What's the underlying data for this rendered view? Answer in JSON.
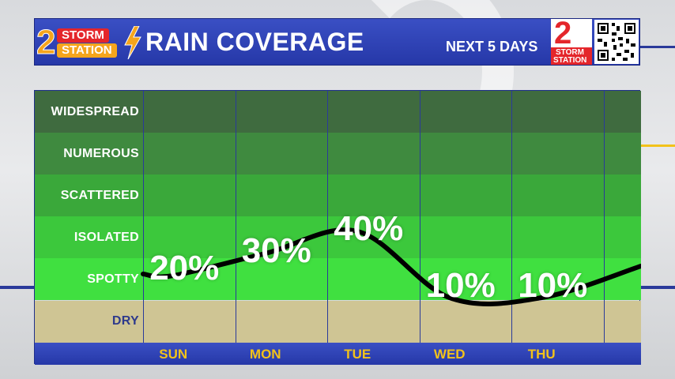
{
  "header": {
    "logo_number": "2",
    "logo_line1": "STORM",
    "logo_line2": "STATION",
    "title": "RAIN COVERAGE",
    "subtitle": "NEXT 5 DAYS",
    "badge_number": "2",
    "badge_line1": "STORM",
    "badge_line2": "STATION"
  },
  "colors": {
    "header_blue": "#2a3fb8",
    "day_label": "#f2c21a",
    "widespread": "#3f6b3f",
    "numerous": "#3f8a3f",
    "scattered": "#3aa83a",
    "isolated": "#3cc83c",
    "spotty": "#40e040",
    "dry": "#cfc594",
    "curve": "#000000"
  },
  "chart_data": {
    "type": "line",
    "categories": [
      "SUN",
      "MON",
      "TUE",
      "WED",
      "THU"
    ],
    "coverage_levels": [
      "WIDESPREAD",
      "NUMEROUS",
      "SCATTERED",
      "ISOLATED",
      "SPOTTY",
      "DRY"
    ],
    "series": [
      {
        "values": [
          20,
          30,
          40,
          10,
          10
        ],
        "labels": [
          "20%",
          "30%",
          "40%",
          "10%",
          "10%"
        ]
      }
    ],
    "ylim": [
      0,
      100
    ],
    "grid": true
  }
}
